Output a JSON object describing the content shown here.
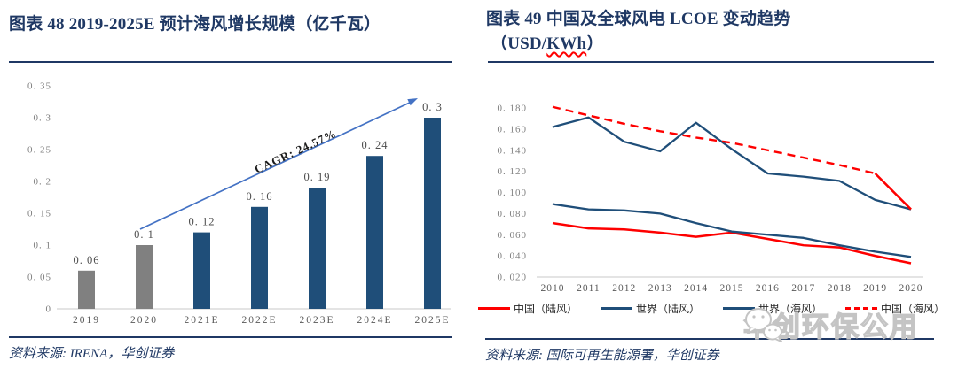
{
  "left_panel": {
    "title": "图表 48  2019-2025E 预计海风增长规模（亿千瓦）",
    "source": "资料来源: IRENA，华创证券"
  },
  "right_panel": {
    "title_line1": "图表 49  中国及全球风电 LCOE 变动趋势",
    "title_line2_prefix": "（USD/",
    "title_line2_kwh": "KWh",
    "title_line2_suffix": "）",
    "source": "资料来源: 国际可再生能源署，华创证券",
    "watermark_text": "华创环保公用",
    "watermark_icon": "wechat-icon"
  },
  "colors": {
    "navy": "#1f4e79",
    "title_navy": "#1f3864",
    "red": "#fe0000",
    "gray_bar": "#808080",
    "arrow_blue": "#4472c4",
    "axis_gray": "#c9c9c9",
    "watermark_gray": "#c4c4c4"
  },
  "chart_data": [
    {
      "type": "bar",
      "title": "2019-2025E 预计海风增长规模（亿千瓦）",
      "categories": [
        "2019",
        "2020",
        "2021E",
        "2022E",
        "2023E",
        "2024E",
        "2025E"
      ],
      "values": [
        0.06,
        0.1,
        0.12,
        0.16,
        0.19,
        0.24,
        0.3
      ],
      "data_labels": [
        "0. 06",
        "0. 1",
        "0. 12",
        "0. 16",
        "0. 19",
        "0. 24",
        "0. 3"
      ],
      "bar_colors": [
        "#808080",
        "#808080",
        "#1f4e79",
        "#1f4e79",
        "#1f4e79",
        "#1f4e79",
        "#1f4e79"
      ],
      "y_ticks": [
        "0",
        "0. 05",
        "0. 1",
        "0. 15",
        "0. 2",
        "0. 25",
        "0. 3",
        "0. 35"
      ],
      "ylim": [
        0,
        0.35
      ],
      "grid": false,
      "annotation": {
        "text": "CAGR: 24.57%",
        "arrow_color": "#4472c4"
      }
    },
    {
      "type": "line",
      "title": "中国及全球风电 LCOE 变动趋势（USD/KWh）",
      "x": [
        "2010",
        "2011",
        "2012",
        "2013",
        "2014",
        "2015",
        "2016",
        "2017",
        "2018",
        "2019",
        "2020"
      ],
      "series": [
        {
          "name": "中国（陆风）",
          "color": "#fe0000",
          "dash": "solid",
          "values": [
            0.071,
            0.066,
            0.065,
            0.062,
            0.058,
            0.062,
            0.056,
            0.05,
            0.048,
            0.04,
            0.033
          ]
        },
        {
          "name": "世界（陆风）",
          "color": "#1f4e79",
          "dash": "solid",
          "values": [
            0.089,
            0.084,
            0.083,
            0.08,
            0.071,
            0.063,
            0.06,
            0.057,
            0.05,
            0.044,
            0.039
          ]
        },
        {
          "name": "世界（海风）",
          "color": "#1f4e79",
          "dash": "solid",
          "values": [
            0.162,
            0.171,
            0.148,
            0.139,
            0.166,
            0.141,
            0.118,
            0.115,
            0.111,
            0.093,
            0.084
          ]
        },
        {
          "name": "中国（海风）",
          "color": "#fe0000",
          "dash": "dashed",
          "tail_solid": true,
          "values": [
            0.181,
            0.173,
            0.165,
            0.158,
            0.152,
            0.147,
            0.14,
            0.133,
            0.126,
            0.118,
            0.084
          ]
        }
      ],
      "y_ticks": [
        "0. 020",
        "0. 040",
        "0. 060",
        "0. 080",
        "0. 100",
        "0. 120",
        "0. 140",
        "0. 160",
        "0. 180"
      ],
      "ylim": [
        0.02,
        0.18
      ],
      "grid": false,
      "legend_position": "bottom"
    }
  ]
}
